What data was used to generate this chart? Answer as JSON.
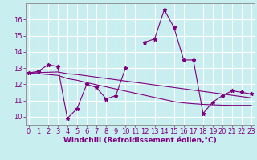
{
  "xlabel": "Windchill (Refroidissement éolien,°C)",
  "x": [
    0,
    1,
    2,
    3,
    4,
    5,
    6,
    7,
    8,
    9,
    10,
    11,
    12,
    13,
    14,
    15,
    16,
    17,
    18,
    19,
    20,
    21,
    22,
    23
  ],
  "y_main": [
    12.7,
    12.8,
    13.2,
    13.1,
    9.9,
    10.5,
    12.0,
    11.8,
    11.1,
    11.3,
    13.0,
    null,
    14.6,
    14.8,
    16.6,
    15.5,
    13.5,
    13.5,
    10.2,
    10.9,
    11.3,
    11.6,
    11.5,
    11.4
  ],
  "y_trend1": [
    12.7,
    12.72,
    12.74,
    12.76,
    12.65,
    12.6,
    12.52,
    12.44,
    12.36,
    12.28,
    12.2,
    12.12,
    12.04,
    11.96,
    11.88,
    11.8,
    11.72,
    11.64,
    11.56,
    11.48,
    11.4,
    11.32,
    11.24,
    11.16
  ],
  "y_trend2": [
    12.7,
    12.65,
    12.6,
    12.55,
    12.35,
    12.25,
    12.1,
    11.97,
    11.84,
    11.71,
    11.58,
    11.45,
    11.32,
    11.19,
    11.06,
    10.93,
    10.85,
    10.8,
    10.76,
    10.73,
    10.71,
    10.7,
    10.7,
    10.7
  ],
  "color": "#800080",
  "bg_color": "#c8eef0",
  "grid_color": "#ffffff",
  "ylim": [
    9.5,
    17.0
  ],
  "yticks": [
    10,
    11,
    12,
    13,
    14,
    15,
    16
  ],
  "xticks": [
    0,
    1,
    2,
    3,
    4,
    5,
    6,
    7,
    8,
    9,
    10,
    11,
    12,
    13,
    14,
    15,
    16,
    17,
    18,
    19,
    20,
    21,
    22,
    23
  ],
  "xlabel_fontsize": 6.5,
  "tick_fontsize": 6.0
}
